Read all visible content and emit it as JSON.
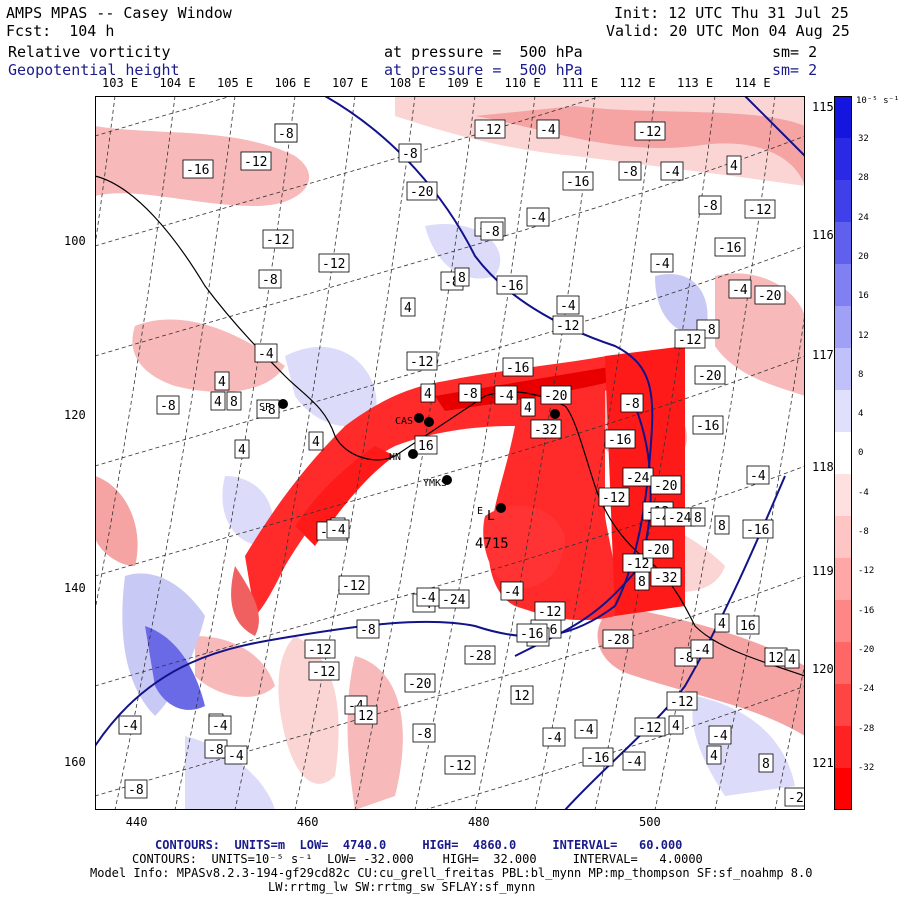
{
  "header": {
    "title": "AMPS MPAS -- Casey Window",
    "init": "Init: 12 UTC Thu 31 Jul 25",
    "fcst": "Fcst:  104 h",
    "valid": "Valid: 20 UTC Mon 04 Aug 25",
    "field1": "Relative vorticity",
    "field1_level": "at pressure =  500 hPa",
    "field1_sm": "sm= 2",
    "field2": "Geopotential height",
    "field2_level": "at pressure =  500 hPa",
    "field2_sm": "sm= 2"
  },
  "lon_labels_top": [
    "103 E",
    "104 E",
    "105 E",
    "106 E",
    "107 E",
    "108 E",
    "109 E",
    "110 E",
    "111 E",
    "112 E",
    "113 E",
    "114 E"
  ],
  "lon_labels_right": [
    "115 E",
    "116 E",
    "117 E",
    "118 E",
    "119 E",
    "120 E",
    "121 E"
  ],
  "y_axis": [
    100,
    120,
    140,
    160
  ],
  "x_axis": [
    440,
    460,
    480,
    500
  ],
  "colorbar": {
    "unit": "10⁻⁵ s⁻¹",
    "ticks": [
      "32",
      "28",
      "24",
      "20",
      "16",
      "12",
      "8",
      "4",
      "0",
      "-4",
      "-8",
      "-12",
      "-16",
      "-20",
      "-24",
      "-28",
      "-32"
    ]
  },
  "stations": [
    "SP",
    "CAS",
    "HN",
    "YMKS",
    "E"
  ],
  "features": {
    "low_label": "L",
    "low_value": "4715"
  },
  "contour_labels": [
    "-8",
    "-12",
    "-16",
    "-12",
    "-8",
    "-4",
    "-12",
    "4",
    "-8",
    "-16",
    "-12",
    "-20",
    "-12",
    "-8",
    "-4",
    "-4",
    "-8",
    "-12",
    "4",
    "-8",
    "-16",
    "-4",
    "-12",
    "-16",
    "-8",
    "8",
    "-4",
    "-4",
    "-8",
    "-20",
    "-12",
    "-4",
    "4",
    "-16",
    "-12",
    "4",
    "-8",
    "8",
    "4",
    "-8",
    "4",
    "-8",
    "-20",
    "4",
    "16",
    "-16",
    "-20",
    "-12",
    "-4",
    "4",
    "-8",
    "-32",
    "-24",
    "-20",
    "-12",
    "-16",
    "-12",
    "-4",
    "8",
    "-12",
    "4",
    "8",
    "-12",
    "-4",
    "-24",
    "-4",
    "-16",
    "-4",
    "-12",
    "-20",
    "-8",
    "-4",
    "16",
    "12",
    "4",
    "8",
    "-4",
    "-4",
    "-12",
    "-8",
    "-20",
    "-28",
    "-16",
    "-28",
    "-12",
    "-12",
    "4",
    "-4",
    "4",
    "-12",
    "-4",
    "-8",
    "-4",
    "-8",
    "-4",
    "12",
    "-8",
    "-12",
    "12",
    "-4",
    "-16",
    "-4",
    "4",
    "8",
    "-20",
    "-12",
    "-32",
    "-16",
    "-24",
    "-4",
    "8",
    "-4",
    "-4",
    "-8"
  ],
  "footer": {
    "line1_a": "CONTOURS:  UNITS=m  LOW=  4740.0",
    "line1_b": "HIGH=  4860.0",
    "line1_c": "INTERVAL=   60.000",
    "line2_a": "CONTOURS:  UNITS=10⁻⁵ s⁻¹  LOW= -32.000",
    "line2_b": "HIGH=  32.000",
    "line2_c": "INTERVAL=   4.0000",
    "line3": "Model Info: MPASv8.2.3-194-gf29cd82c CU:cu_grell_freitas PBL:bl_mynn MP:mp_thompson SF:sf_noahmp 8.0",
    "line4": "LW:rrtmg_lw SW:rrtmg_sw SFLAY:sf_mynn"
  },
  "colors": {
    "title_blue": "#1a1a8c",
    "height_contour": "#12128a",
    "red_strong": "#ff1a1a",
    "blue_strong": "#2b2bd9"
  }
}
